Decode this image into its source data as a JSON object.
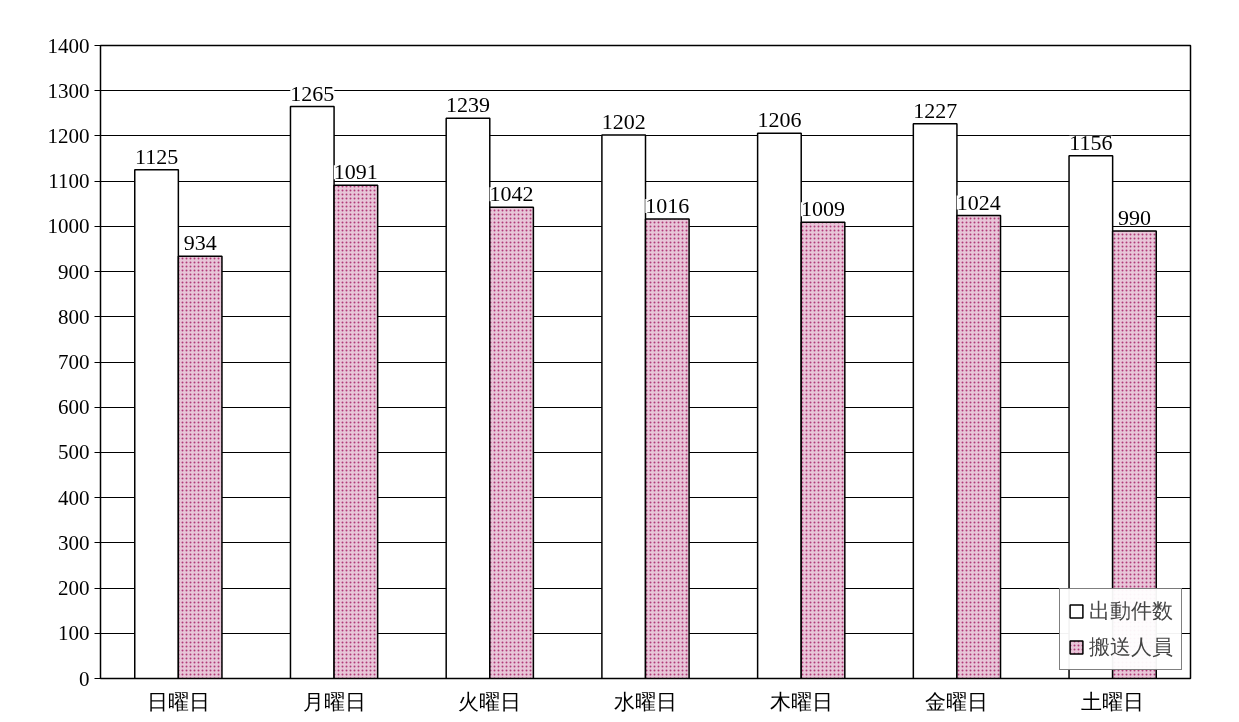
{
  "chart_data": {
    "type": "bar",
    "categories": [
      "日曜日",
      "月曜日",
      "火曜日",
      "水曜日",
      "木曜日",
      "金曜日",
      "土曜日"
    ],
    "series": [
      {
        "name": "出動件数",
        "color": "#ffffff",
        "values": [
          1125,
          1265,
          1239,
          1202,
          1206,
          1227,
          1156
        ]
      },
      {
        "name": "搬送人員",
        "color": "#e8c6d8",
        "values": [
          934,
          1091,
          1042,
          1016,
          1009,
          1024,
          990
        ]
      }
    ],
    "ylim": [
      0,
      1400
    ],
    "yticks": [
      0,
      100,
      200,
      300,
      400,
      500,
      600,
      700,
      800,
      900,
      1000,
      1100,
      1200,
      1300,
      1400
    ],
    "grid": "y",
    "legend": "bottom right",
    "data_labels": true
  }
}
